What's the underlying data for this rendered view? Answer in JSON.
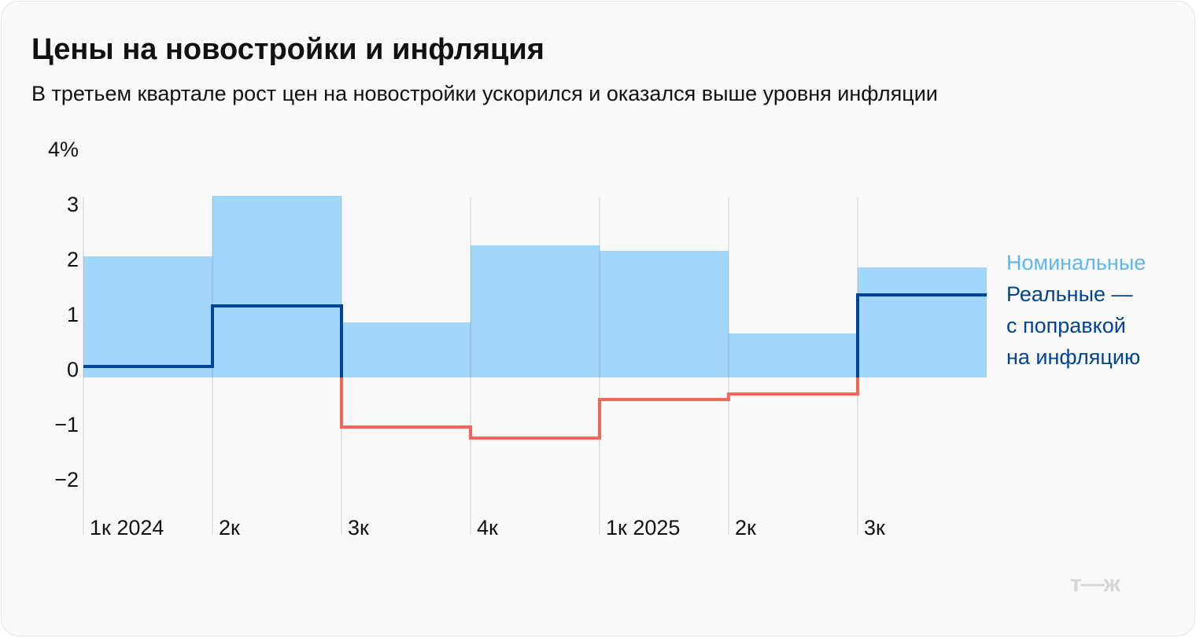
{
  "title": "Цены на новостройки и инфляция",
  "subtitle": "В третьем квартале рост цен на новостройки ускорился и оказался выше уровня инфляции",
  "logo": "т—ж",
  "chart_data": {
    "type": "bar",
    "title": "Цены на новостройки и инфляция",
    "categories": [
      "1к 2024",
      "2к",
      "3к",
      "4к",
      "1к 2025",
      "2к",
      "3к"
    ],
    "y_ticks": [
      "4%",
      "3",
      "2",
      "1",
      "0",
      "−1",
      "−2"
    ],
    "y_tick_values": [
      4,
      3,
      2,
      1,
      0,
      -1,
      -2
    ],
    "ylim": [
      -2.8,
      4
    ],
    "series": [
      {
        "name": "Номинальные",
        "kind": "bar",
        "color": "#a3d6fb",
        "values": [
          2.2,
          3.3,
          1.0,
          2.4,
          2.3,
          0.8,
          2.0
        ]
      },
      {
        "name": "Реальные — с поправкой на инфляцию",
        "kind": "step-line",
        "color": "#00449a",
        "negative_color": "#f0685a",
        "values": [
          0.2,
          1.3,
          -0.9,
          -1.1,
          -0.4,
          -0.3,
          1.5
        ]
      }
    ],
    "legend": {
      "nominal": "Номинальные",
      "real_lines": [
        "Реальные —",
        "с поправкой",
        "на инфляцию"
      ],
      "placement": "right"
    }
  }
}
